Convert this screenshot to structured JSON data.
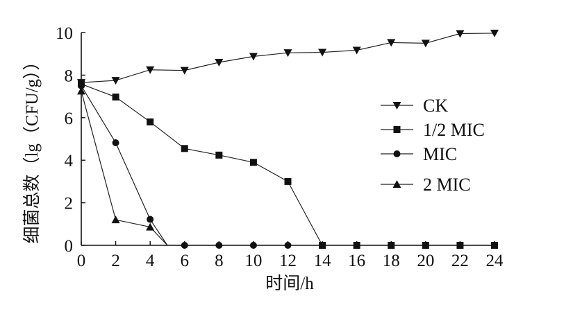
{
  "chart_data": {
    "type": "line",
    "title": "",
    "xlabel": "时间/h",
    "ylabel": "细菌总数（lg（CFU/g））",
    "x_ticks": [
      "0",
      "2",
      "4",
      "6",
      "8",
      "10",
      "12",
      "14",
      "16",
      "18",
      "20",
      "22",
      "24"
    ],
    "y_ticks": [
      "0",
      "2",
      "4",
      "6",
      "8",
      "10"
    ],
    "xlim": [
      0,
      24
    ],
    "ylim": [
      0,
      10
    ],
    "grid": false,
    "legend_position": "right",
    "series": [
      {
        "name": "CK",
        "marker": "triangle-down",
        "x": [
          0,
          2,
          4,
          6,
          8,
          10,
          12,
          14,
          16,
          18,
          20,
          22,
          24
        ],
        "y": [
          7.65,
          7.75,
          8.25,
          8.22,
          8.6,
          8.88,
          9.05,
          9.07,
          9.17,
          9.53,
          9.5,
          9.95,
          9.97
        ]
      },
      {
        "name": "1/2 MIC",
        "marker": "square",
        "x": [
          0,
          2,
          4,
          6,
          8,
          10,
          12,
          14,
          16,
          18,
          20,
          22,
          24
        ],
        "y": [
          7.58,
          6.97,
          5.8,
          4.55,
          4.24,
          3.9,
          3.0,
          0,
          0,
          0,
          0,
          0,
          0
        ]
      },
      {
        "name": "MIC",
        "marker": "circle",
        "x": [
          0,
          2,
          4,
          5,
          6,
          8,
          10,
          12
        ],
        "y": [
          7.5,
          4.82,
          1.22,
          0,
          0,
          0,
          0,
          0
        ]
      },
      {
        "name": "2 MIC",
        "marker": "triangle-up",
        "x": [
          0,
          2,
          4,
          5
        ],
        "y": [
          7.25,
          1.2,
          0.86,
          0
        ]
      }
    ]
  }
}
